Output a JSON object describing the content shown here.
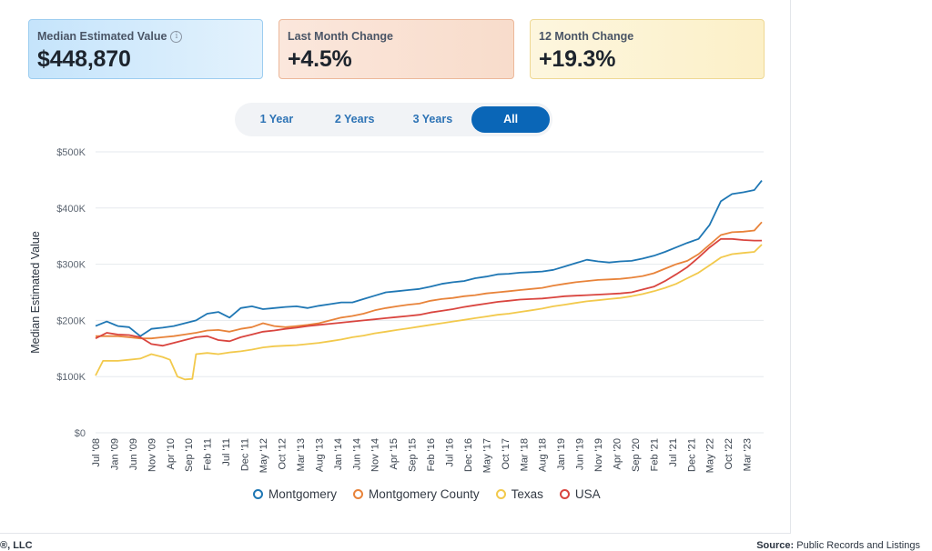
{
  "cards": [
    {
      "label": "Median Estimated Value",
      "value": "$448,870",
      "info_icon": "info-icon"
    },
    {
      "label": "Last Month Change",
      "value": "+4.5%"
    },
    {
      "label": "12 Month Change",
      "value": "+19.3%"
    }
  ],
  "range_buttons": [
    "1 Year",
    "2 Years",
    "3 Years",
    "All"
  ],
  "active_range": "All",
  "footer": {
    "left": "®, LLC",
    "source_label": "Source:",
    "source_text": "Public Records and Listings"
  },
  "chart_data": {
    "type": "line",
    "ylabel": "Median Estimated Value",
    "ylim": [
      0,
      500000
    ],
    "y_ticks": [
      0,
      100000,
      200000,
      300000,
      400000,
      500000
    ],
    "y_tick_labels": [
      "$0",
      "$100K",
      "$200K",
      "$300K",
      "$400K",
      "$500K"
    ],
    "x_tick_labels": [
      "Jul '08",
      "Jan '09",
      "Jun '09",
      "Nov '09",
      "Apr '10",
      "Sep '10",
      "Feb '11",
      "Jul '11",
      "Dec '11",
      "May '12",
      "Oct '12",
      "Mar '13",
      "Aug '13",
      "Jan '14",
      "Jun '14",
      "Nov '14",
      "Apr '15",
      "Sep '15",
      "Feb '16",
      "Jul '16",
      "Dec '16",
      "May '17",
      "Oct '17",
      "Mar '18",
      "Aug '18",
      "Jan '19",
      "Jun '19",
      "Nov '19",
      "Apr '20",
      "Sep '20",
      "Feb '21",
      "Jul '21",
      "Dec '21",
      "May '22",
      "Oct '22",
      "Mar '23"
    ],
    "x_start": "2008-07",
    "x_end": "2023-06",
    "grid": true,
    "legend_position": "bottom",
    "series": [
      {
        "name": "Montgomery",
        "color": "#1f77b4",
        "points": [
          [
            "2008-07",
            190000
          ],
          [
            "2008-10",
            198000
          ],
          [
            "2009-01",
            190000
          ],
          [
            "2009-04",
            188000
          ],
          [
            "2009-07",
            172000
          ],
          [
            "2009-10",
            185000
          ],
          [
            "2010-01",
            187000
          ],
          [
            "2010-04",
            190000
          ],
          [
            "2010-07",
            195000
          ],
          [
            "2010-10",
            200000
          ],
          [
            "2011-01",
            212000
          ],
          [
            "2011-04",
            215000
          ],
          [
            "2011-07",
            205000
          ],
          [
            "2011-10",
            222000
          ],
          [
            "2012-01",
            225000
          ],
          [
            "2012-04",
            220000
          ],
          [
            "2012-07",
            222000
          ],
          [
            "2012-10",
            224000
          ],
          [
            "2013-01",
            225000
          ],
          [
            "2013-04",
            222000
          ],
          [
            "2013-07",
            226000
          ],
          [
            "2013-10",
            229000
          ],
          [
            "2014-01",
            232000
          ],
          [
            "2014-04",
            232000
          ],
          [
            "2014-07",
            238000
          ],
          [
            "2014-10",
            244000
          ],
          [
            "2015-01",
            250000
          ],
          [
            "2015-04",
            252000
          ],
          [
            "2015-07",
            254000
          ],
          [
            "2015-10",
            256000
          ],
          [
            "2016-01",
            260000
          ],
          [
            "2016-04",
            265000
          ],
          [
            "2016-07",
            268000
          ],
          [
            "2016-10",
            270000
          ],
          [
            "2017-01",
            275000
          ],
          [
            "2017-04",
            278000
          ],
          [
            "2017-07",
            282000
          ],
          [
            "2017-10",
            283000
          ],
          [
            "2018-01",
            285000
          ],
          [
            "2018-04",
            286000
          ],
          [
            "2018-07",
            287000
          ],
          [
            "2018-10",
            290000
          ],
          [
            "2019-01",
            296000
          ],
          [
            "2019-04",
            302000
          ],
          [
            "2019-07",
            308000
          ],
          [
            "2019-10",
            305000
          ],
          [
            "2020-01",
            303000
          ],
          [
            "2020-04",
            305000
          ],
          [
            "2020-07",
            306000
          ],
          [
            "2020-10",
            310000
          ],
          [
            "2021-01",
            315000
          ],
          [
            "2021-04",
            322000
          ],
          [
            "2021-07",
            330000
          ],
          [
            "2021-10",
            338000
          ],
          [
            "2022-01",
            345000
          ],
          [
            "2022-04",
            370000
          ],
          [
            "2022-07",
            412000
          ],
          [
            "2022-10",
            425000
          ],
          [
            "2023-01",
            428000
          ],
          [
            "2023-04",
            432000
          ],
          [
            "2023-06",
            448870
          ]
        ]
      },
      {
        "name": "Montgomery County",
        "color": "#e8833a",
        "points": [
          [
            "2008-07",
            172000
          ],
          [
            "2008-10",
            172000
          ],
          [
            "2009-01",
            172000
          ],
          [
            "2009-04",
            170000
          ],
          [
            "2009-07",
            168000
          ],
          [
            "2009-10",
            168000
          ],
          [
            "2010-01",
            170000
          ],
          [
            "2010-04",
            172000
          ],
          [
            "2010-07",
            175000
          ],
          [
            "2010-10",
            178000
          ],
          [
            "2011-01",
            182000
          ],
          [
            "2011-04",
            183000
          ],
          [
            "2011-07",
            180000
          ],
          [
            "2011-10",
            185000
          ],
          [
            "2012-01",
            188000
          ],
          [
            "2012-04",
            195000
          ],
          [
            "2012-07",
            190000
          ],
          [
            "2012-10",
            188000
          ],
          [
            "2013-01",
            190000
          ],
          [
            "2013-04",
            192000
          ],
          [
            "2013-07",
            195000
          ],
          [
            "2013-10",
            200000
          ],
          [
            "2014-01",
            205000
          ],
          [
            "2014-04",
            208000
          ],
          [
            "2014-07",
            212000
          ],
          [
            "2014-10",
            218000
          ],
          [
            "2015-01",
            222000
          ],
          [
            "2015-04",
            225000
          ],
          [
            "2015-07",
            228000
          ],
          [
            "2015-10",
            230000
          ],
          [
            "2016-01",
            235000
          ],
          [
            "2016-04",
            238000
          ],
          [
            "2016-07",
            240000
          ],
          [
            "2016-10",
            243000
          ],
          [
            "2017-01",
            245000
          ],
          [
            "2017-04",
            248000
          ],
          [
            "2017-07",
            250000
          ],
          [
            "2017-10",
            252000
          ],
          [
            "2018-01",
            254000
          ],
          [
            "2018-04",
            256000
          ],
          [
            "2018-07",
            258000
          ],
          [
            "2018-10",
            262000
          ],
          [
            "2019-01",
            265000
          ],
          [
            "2019-04",
            268000
          ],
          [
            "2019-07",
            270000
          ],
          [
            "2019-10",
            272000
          ],
          [
            "2020-01",
            273000
          ],
          [
            "2020-04",
            274000
          ],
          [
            "2020-07",
            276000
          ],
          [
            "2020-10",
            279000
          ],
          [
            "2021-01",
            284000
          ],
          [
            "2021-04",
            292000
          ],
          [
            "2021-07",
            300000
          ],
          [
            "2021-10",
            306000
          ],
          [
            "2022-01",
            318000
          ],
          [
            "2022-04",
            335000
          ],
          [
            "2022-07",
            352000
          ],
          [
            "2022-10",
            357000
          ],
          [
            "2023-01",
            358000
          ],
          [
            "2023-04",
            360000
          ],
          [
            "2023-06",
            375000
          ]
        ]
      },
      {
        "name": "Texas",
        "color": "#f2c94c",
        "points": [
          [
            "2008-07",
            102000
          ],
          [
            "2008-09",
            128000
          ],
          [
            "2009-01",
            128000
          ],
          [
            "2009-04",
            130000
          ],
          [
            "2009-07",
            132000
          ],
          [
            "2009-10",
            140000
          ],
          [
            "2010-01",
            135000
          ],
          [
            "2010-03",
            130000
          ],
          [
            "2010-05",
            100000
          ],
          [
            "2010-07",
            95000
          ],
          [
            "2010-09",
            96000
          ],
          [
            "2010-10",
            140000
          ],
          [
            "2011-01",
            142000
          ],
          [
            "2011-04",
            140000
          ],
          [
            "2011-07",
            143000
          ],
          [
            "2011-10",
            145000
          ],
          [
            "2012-01",
            148000
          ],
          [
            "2012-04",
            152000
          ],
          [
            "2012-07",
            154000
          ],
          [
            "2012-10",
            155000
          ],
          [
            "2013-01",
            156000
          ],
          [
            "2013-04",
            158000
          ],
          [
            "2013-07",
            160000
          ],
          [
            "2013-10",
            163000
          ],
          [
            "2014-01",
            166000
          ],
          [
            "2014-04",
            170000
          ],
          [
            "2014-07",
            173000
          ],
          [
            "2014-10",
            177000
          ],
          [
            "2015-01",
            180000
          ],
          [
            "2015-04",
            183000
          ],
          [
            "2015-07",
            186000
          ],
          [
            "2015-10",
            189000
          ],
          [
            "2016-01",
            192000
          ],
          [
            "2016-04",
            195000
          ],
          [
            "2016-07",
            198000
          ],
          [
            "2016-10",
            201000
          ],
          [
            "2017-01",
            204000
          ],
          [
            "2017-04",
            207000
          ],
          [
            "2017-07",
            210000
          ],
          [
            "2017-10",
            212000
          ],
          [
            "2018-01",
            215000
          ],
          [
            "2018-04",
            218000
          ],
          [
            "2018-07",
            221000
          ],
          [
            "2018-10",
            225000
          ],
          [
            "2019-01",
            228000
          ],
          [
            "2019-04",
            231000
          ],
          [
            "2019-07",
            234000
          ],
          [
            "2019-10",
            236000
          ],
          [
            "2020-01",
            238000
          ],
          [
            "2020-04",
            240000
          ],
          [
            "2020-07",
            243000
          ],
          [
            "2020-10",
            247000
          ],
          [
            "2021-01",
            252000
          ],
          [
            "2021-04",
            258000
          ],
          [
            "2021-07",
            265000
          ],
          [
            "2021-10",
            275000
          ],
          [
            "2022-01",
            285000
          ],
          [
            "2022-04",
            298000
          ],
          [
            "2022-07",
            312000
          ],
          [
            "2022-10",
            318000
          ],
          [
            "2023-01",
            320000
          ],
          [
            "2023-04",
            322000
          ],
          [
            "2023-06",
            335000
          ]
        ]
      },
      {
        "name": "USA",
        "color": "#d9453f",
        "points": [
          [
            "2008-07",
            168000
          ],
          [
            "2008-10",
            178000
          ],
          [
            "2009-01",
            175000
          ],
          [
            "2009-04",
            174000
          ],
          [
            "2009-07",
            170000
          ],
          [
            "2009-10",
            158000
          ],
          [
            "2010-01",
            155000
          ],
          [
            "2010-04",
            160000
          ],
          [
            "2010-07",
            165000
          ],
          [
            "2010-10",
            170000
          ],
          [
            "2011-01",
            172000
          ],
          [
            "2011-04",
            165000
          ],
          [
            "2011-07",
            163000
          ],
          [
            "2011-10",
            170000
          ],
          [
            "2012-01",
            175000
          ],
          [
            "2012-04",
            180000
          ],
          [
            "2012-07",
            182000
          ],
          [
            "2012-10",
            185000
          ],
          [
            "2013-01",
            187000
          ],
          [
            "2013-04",
            190000
          ],
          [
            "2013-07",
            192000
          ],
          [
            "2013-10",
            194000
          ],
          [
            "2014-01",
            196000
          ],
          [
            "2014-04",
            198000
          ],
          [
            "2014-07",
            200000
          ],
          [
            "2014-10",
            202000
          ],
          [
            "2015-01",
            204000
          ],
          [
            "2015-04",
            206000
          ],
          [
            "2015-07",
            208000
          ],
          [
            "2015-10",
            210000
          ],
          [
            "2016-01",
            214000
          ],
          [
            "2016-04",
            217000
          ],
          [
            "2016-07",
            220000
          ],
          [
            "2016-10",
            224000
          ],
          [
            "2017-01",
            227000
          ],
          [
            "2017-04",
            230000
          ],
          [
            "2017-07",
            233000
          ],
          [
            "2017-10",
            235000
          ],
          [
            "2018-01",
            237000
          ],
          [
            "2018-04",
            238000
          ],
          [
            "2018-07",
            239000
          ],
          [
            "2018-10",
            241000
          ],
          [
            "2019-01",
            243000
          ],
          [
            "2019-04",
            244000
          ],
          [
            "2019-07",
            245000
          ],
          [
            "2019-10",
            246000
          ],
          [
            "2020-01",
            247000
          ],
          [
            "2020-04",
            248000
          ],
          [
            "2020-07",
            250000
          ],
          [
            "2020-10",
            255000
          ],
          [
            "2021-01",
            260000
          ],
          [
            "2021-04",
            270000
          ],
          [
            "2021-07",
            282000
          ],
          [
            "2021-10",
            295000
          ],
          [
            "2022-01",
            312000
          ],
          [
            "2022-04",
            330000
          ],
          [
            "2022-07",
            345000
          ],
          [
            "2022-10",
            345000
          ],
          [
            "2023-01",
            343000
          ],
          [
            "2023-04",
            342000
          ],
          [
            "2023-06",
            342000
          ]
        ]
      }
    ]
  }
}
